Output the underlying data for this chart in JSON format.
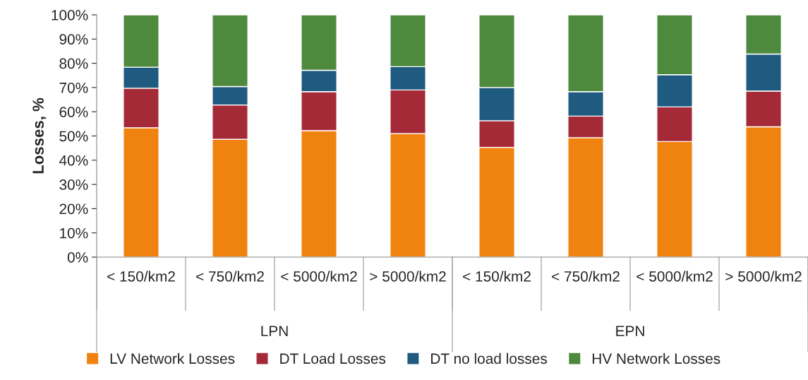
{
  "chart_data": {
    "type": "bar",
    "stacked": true,
    "ylabel": "Losses, %",
    "categories": [
      "< 150/km2",
      "< 750/km2",
      "< 5000/km2",
      "> 5000/km2",
      "< 150/km2",
      "< 750/km2",
      "< 5000/km2",
      "> 5000/km2"
    ],
    "annotations": [
      "LPN",
      "EPN"
    ],
    "series": [
      {
        "name": "LV Network Losses",
        "color": "#f0820f",
        "values": [
          53.4,
          48.6,
          52.2,
          51,
          45.3,
          49.3,
          47.7,
          53.8
        ]
      },
      {
        "name": "DT Load Losses",
        "color": "#a52a38",
        "values": [
          16.3,
          14.2,
          16.1,
          18,
          11,
          8.9,
          14.3,
          14.7
        ]
      },
      {
        "name": "DT no load losses",
        "color": "#1f5a80",
        "values": [
          8.7,
          7.6,
          8.8,
          9.6,
          13.7,
          10.1,
          13.3,
          15.3
        ]
      },
      {
        "name": "HV Network Losses",
        "color": "#4e8a3e",
        "values": [
          21.6,
          29.6,
          22.9,
          21.4,
          30,
          31.7,
          24.7,
          16.2
        ]
      }
    ],
    "ylim": [
      0,
      100
    ],
    "yticks": [
      {
        "value": 0,
        "label": "0%"
      },
      {
        "value": 10,
        "label": "10%"
      },
      {
        "value": 20,
        "label": "20%"
      },
      {
        "value": 30,
        "label": "30%"
      },
      {
        "value": 40,
        "label": "40%"
      },
      {
        "value": 50,
        "label": "50%"
      },
      {
        "value": 60,
        "label": "60%"
      },
      {
        "value": 70,
        "label": "70%"
      },
      {
        "value": 80,
        "label": "80%"
      },
      {
        "value": 90,
        "label": "90%"
      },
      {
        "value": 100,
        "label": "100%"
      }
    ],
    "legend": "bottom"
  }
}
